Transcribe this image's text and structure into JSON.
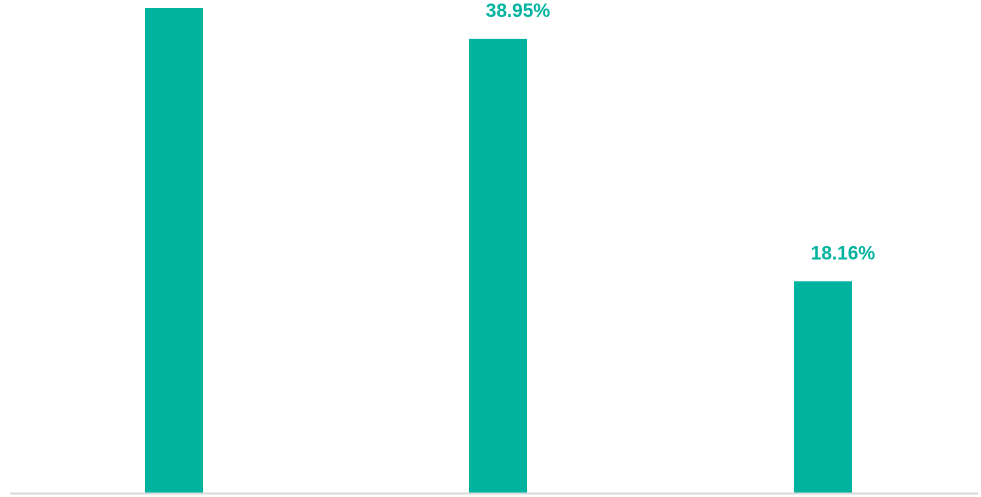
{
  "chart_data": {
    "type": "bar",
    "categories": [
      "",
      "",
      ""
    ],
    "values": [
      41.6,
      38.95,
      18.16
    ],
    "data_labels": [
      "",
      "38.95%",
      "18.16%"
    ],
    "title": "",
    "xlabel": "",
    "ylabel": "",
    "ylim": [
      0,
      41.6
    ],
    "grid": false,
    "legend": "none",
    "colors": {
      "bar": "#00b39e",
      "label": "#00b39e",
      "axis": "#d9d9d9"
    }
  }
}
